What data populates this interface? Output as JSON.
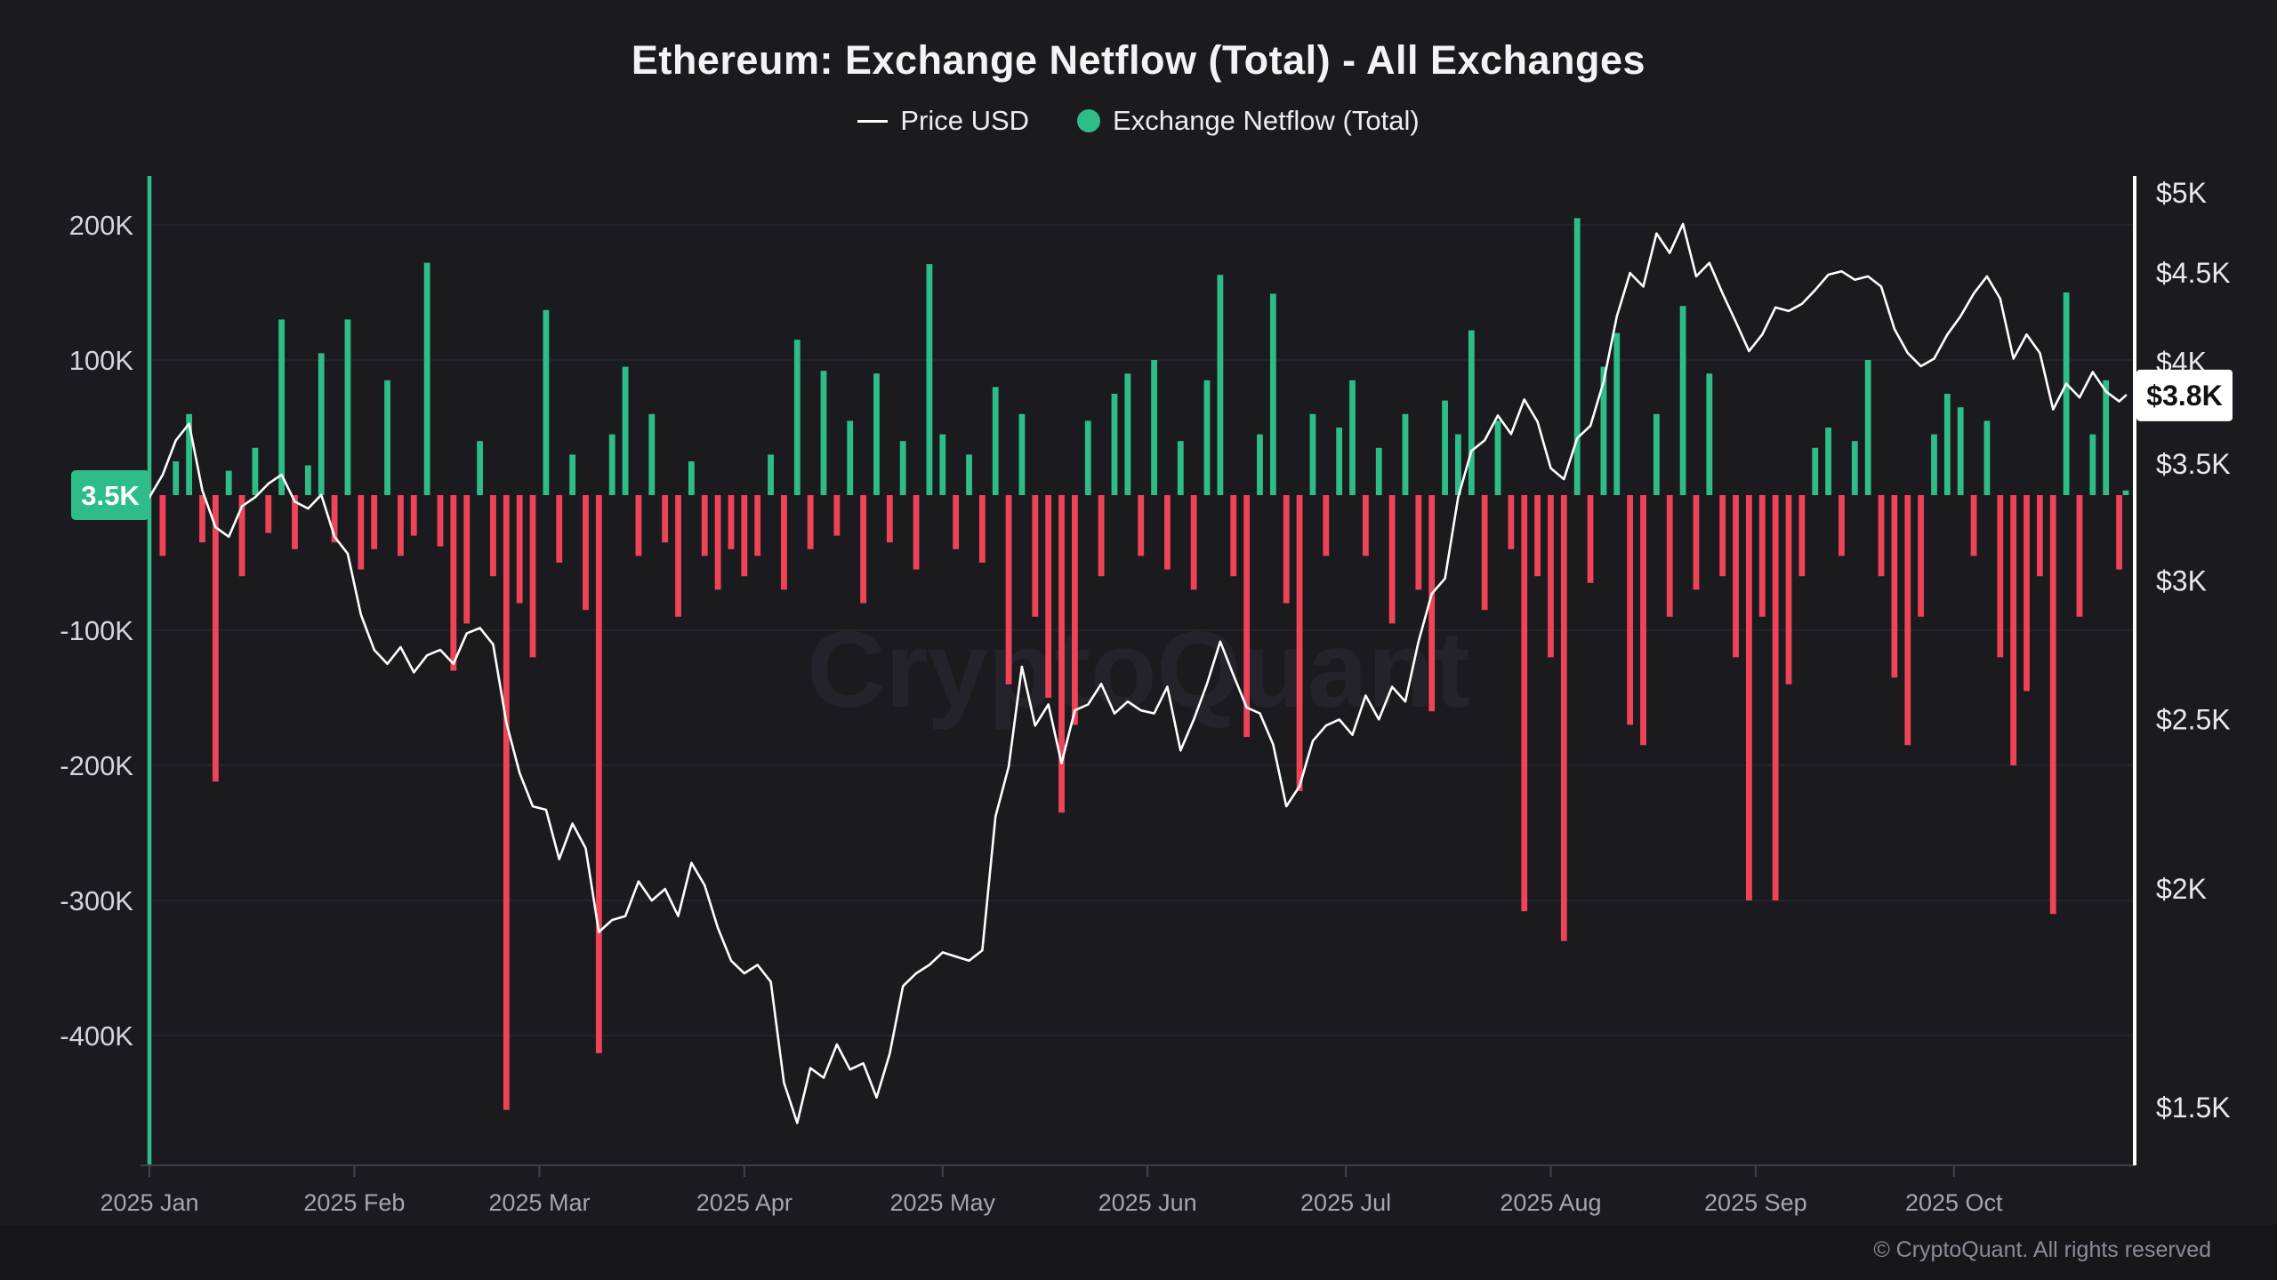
{
  "title": "Ethereum: Exchange Netflow (Total) - All Exchanges",
  "legend": {
    "price_label": "Price USD",
    "netflow_label": "Exchange Netflow (Total)"
  },
  "watermark": "CryptoQuant",
  "footer": {
    "copyright": "© CryptoQuant. All rights reserved"
  },
  "colors": {
    "background": "#1b1b1f",
    "footer_background": "#17171a",
    "netflow_positive": "#2ebd88",
    "netflow_negative": "#ef4458",
    "price_line": "#ffffff",
    "gridline": "rgba(150,140,200,0.10)",
    "axis_line": "#3c3c45",
    "right_axis_line": "#ffffff",
    "left_label_text": "#d4d5da",
    "right_label_text": "#e7e8eb",
    "month_label_text": "#a4a5af",
    "netflow_badge_bg": "#2ebd88",
    "netflow_badge_text": "#ffffff",
    "price_badge_bg": "#ffffff",
    "price_badge_text": "#111114",
    "watermark_text": "rgba(150,142,190,0.08)"
  },
  "chart_data": {
    "type": "bar+line",
    "title": "Ethereum: Exchange Netflow (Total) - All Exchanges",
    "series": [
      {
        "name": "Exchange Netflow (Total)",
        "type": "bar",
        "axis": "left",
        "unit": "K ETH"
      },
      {
        "name": "Price USD",
        "type": "line",
        "axis": "right",
        "unit": "USD"
      }
    ],
    "left_axis": {
      "label": "Exchange Netflow (Total)",
      "scale": "linear",
      "tick_labels": [
        "200K",
        "100K",
        "-100K",
        "-200K",
        "-300K",
        "-400K"
      ],
      "tick_values": [
        200,
        100,
        -100,
        -200,
        -300,
        -400
      ],
      "range_k": [
        -495,
        235
      ],
      "current_value_badge": "3.5K",
      "current_value_k": 3.5
    },
    "right_axis": {
      "label": "Price USD",
      "scale": "log",
      "tick_labels": [
        "$5K",
        "$4.5K",
        "$4K",
        "$3.5K",
        "$3K",
        "$2.5K",
        "$2K",
        "$1.5K"
      ],
      "tick_values": [
        5000,
        4500,
        4000,
        3500,
        3000,
        2500,
        2000,
        1500
      ],
      "range_usd": [
        1390,
        5110
      ],
      "current_value_badge": "$3.8K",
      "current_value_usd": 3830
    },
    "x_axis": {
      "tick_labels": [
        "2025 Jan",
        "2025 Feb",
        "2025 Mar",
        "2025 Apr",
        "2025 May",
        "2025 Jun",
        "2025 Jul",
        "2025 Aug",
        "2025 Sep",
        "2025 Oct"
      ],
      "tick_day_offsets": [
        0,
        31,
        59,
        90,
        120,
        151,
        181,
        212,
        243,
        273
      ]
    },
    "full_height_spike_index": 0,
    "dates": [
      "2025-01-01",
      "2025-01-03",
      "2025-01-05",
      "2025-01-07",
      "2025-01-09",
      "2025-01-11",
      "2025-01-13",
      "2025-01-15",
      "2025-01-17",
      "2025-01-19",
      "2025-01-21",
      "2025-01-23",
      "2025-01-25",
      "2025-01-27",
      "2025-01-29",
      "2025-01-31",
      "2025-02-02",
      "2025-02-04",
      "2025-02-06",
      "2025-02-08",
      "2025-02-10",
      "2025-02-12",
      "2025-02-14",
      "2025-02-16",
      "2025-02-18",
      "2025-02-20",
      "2025-02-22",
      "2025-02-24",
      "2025-02-26",
      "2025-02-28",
      "2025-03-02",
      "2025-03-04",
      "2025-03-06",
      "2025-03-08",
      "2025-03-10",
      "2025-03-12",
      "2025-03-14",
      "2025-03-16",
      "2025-03-18",
      "2025-03-20",
      "2025-03-22",
      "2025-03-24",
      "2025-03-26",
      "2025-03-28",
      "2025-03-30",
      "2025-04-01",
      "2025-04-03",
      "2025-04-05",
      "2025-04-07",
      "2025-04-09",
      "2025-04-11",
      "2025-04-13",
      "2025-04-15",
      "2025-04-17",
      "2025-04-19",
      "2025-04-21",
      "2025-04-23",
      "2025-04-25",
      "2025-04-27",
      "2025-04-29",
      "2025-05-01",
      "2025-05-03",
      "2025-05-05",
      "2025-05-07",
      "2025-05-09",
      "2025-05-11",
      "2025-05-13",
      "2025-05-15",
      "2025-05-17",
      "2025-05-19",
      "2025-05-21",
      "2025-05-23",
      "2025-05-25",
      "2025-05-27",
      "2025-05-29",
      "2025-05-31",
      "2025-06-02",
      "2025-06-04",
      "2025-06-06",
      "2025-06-08",
      "2025-06-10",
      "2025-06-12",
      "2025-06-14",
      "2025-06-16",
      "2025-06-18",
      "2025-06-20",
      "2025-06-22",
      "2025-06-24",
      "2025-06-26",
      "2025-06-28",
      "2025-06-30",
      "2025-07-02",
      "2025-07-04",
      "2025-07-06",
      "2025-07-08",
      "2025-07-10",
      "2025-07-12",
      "2025-07-14",
      "2025-07-16",
      "2025-07-18",
      "2025-07-20",
      "2025-07-22",
      "2025-07-24",
      "2025-07-26",
      "2025-07-28",
      "2025-07-30",
      "2025-08-01",
      "2025-08-03",
      "2025-08-05",
      "2025-08-07",
      "2025-08-09",
      "2025-08-11",
      "2025-08-13",
      "2025-08-15",
      "2025-08-17",
      "2025-08-19",
      "2025-08-21",
      "2025-08-23",
      "2025-08-25",
      "2025-08-27",
      "2025-08-29",
      "2025-08-31",
      "2025-09-02",
      "2025-09-04",
      "2025-09-06",
      "2025-09-08",
      "2025-09-10",
      "2025-09-12",
      "2025-09-14",
      "2025-09-16",
      "2025-09-18",
      "2025-09-20",
      "2025-09-22",
      "2025-09-24",
      "2025-09-26",
      "2025-09-28",
      "2025-09-30",
      "2025-10-02",
      "2025-10-04",
      "2025-10-06",
      "2025-10-08",
      "2025-10-10",
      "2025-10-12",
      "2025-10-14",
      "2025-10-16",
      "2025-10-18",
      "2025-10-20",
      "2025-10-22",
      "2025-10-24",
      "2025-10-26",
      "2025-10-27"
    ],
    "netflow_k_eth": [
      600,
      -45,
      25,
      60,
      -35,
      -212,
      18,
      -60,
      35,
      -28,
      130,
      -40,
      22,
      105,
      -35,
      130,
      -55,
      -40,
      85,
      -45,
      -30,
      172,
      -38,
      -130,
      -95,
      40,
      -60,
      -455,
      -80,
      -120,
      137,
      -50,
      30,
      -85,
      -413,
      45,
      95,
      -45,
      60,
      -35,
      -90,
      25,
      -45,
      -70,
      -40,
      -60,
      -45,
      30,
      -70,
      115,
      -40,
      92,
      -30,
      55,
      -80,
      90,
      -35,
      40,
      -55,
      171,
      45,
      -40,
      30,
      -50,
      80,
      -140,
      60,
      -90,
      -150,
      -235,
      -170,
      55,
      -60,
      75,
      90,
      -45,
      100,
      -55,
      40,
      -70,
      85,
      163,
      -60,
      -179,
      45,
      149,
      -80,
      -219,
      60,
      -45,
      50,
      85,
      -45,
      35,
      -95,
      60,
      -70,
      -160,
      70,
      45,
      122,
      -85,
      55,
      -40,
      -308,
      -60,
      -120,
      -330,
      205,
      -65,
      95,
      120,
      -170,
      -185,
      60,
      -90,
      140,
      -70,
      90,
      -60,
      -120,
      -300,
      -90,
      -300,
      -140,
      -60,
      35,
      50,
      -45,
      40,
      100,
      -60,
      -135,
      -185,
      -90,
      45,
      75,
      65,
      -45,
      55,
      -120,
      -200,
      -145,
      -60,
      -310,
      150,
      -90,
      45,
      85,
      -55,
      3.5
    ],
    "price_usd": [
      3350,
      3450,
      3610,
      3690,
      3380,
      3220,
      3180,
      3310,
      3350,
      3410,
      3450,
      3330,
      3300,
      3360,
      3180,
      3110,
      2870,
      2740,
      2690,
      2750,
      2660,
      2720,
      2740,
      2690,
      2800,
      2820,
      2760,
      2490,
      2330,
      2230,
      2220,
      2080,
      2180,
      2110,
      1890,
      1920,
      1930,
      2020,
      1970,
      2000,
      1930,
      2070,
      2010,
      1900,
      1820,
      1790,
      1810,
      1770,
      1550,
      1470,
      1580,
      1560,
      1630,
      1577,
      1590,
      1520,
      1610,
      1760,
      1790,
      1810,
      1840,
      1830,
      1820,
      1845,
      2200,
      2350,
      2680,
      2480,
      2550,
      2360,
      2530,
      2550,
      2620,
      2520,
      2560,
      2530,
      2520,
      2610,
      2400,
      2500,
      2620,
      2770,
      2650,
      2540,
      2520,
      2420,
      2230,
      2290,
      2430,
      2480,
      2500,
      2450,
      2580,
      2500,
      2610,
      2560,
      2770,
      2950,
      3010,
      3350,
      3560,
      3610,
      3730,
      3640,
      3810,
      3700,
      3480,
      3430,
      3620,
      3680,
      3900,
      4250,
      4500,
      4420,
      4740,
      4620,
      4800,
      4480,
      4560,
      4380,
      4220,
      4060,
      4150,
      4300,
      4280,
      4320,
      4400,
      4490,
      4510,
      4460,
      4480,
      4420,
      4180,
      4050,
      3980,
      4020,
      4150,
      4250,
      4380,
      4480,
      4350,
      4020,
      4150,
      4050,
      3760,
      3890,
      3820,
      3950,
      3850,
      3800,
      3830
    ]
  }
}
